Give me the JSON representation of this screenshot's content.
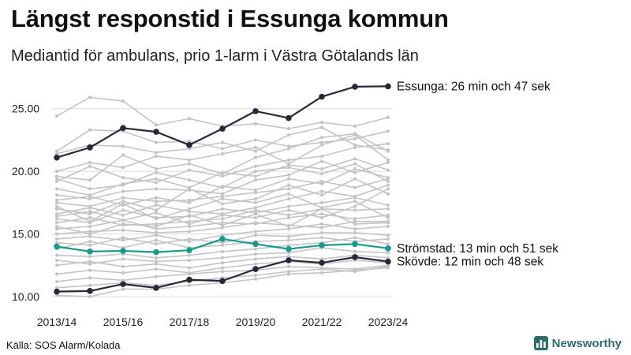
{
  "title": "Längst responstid i Essunga kommun",
  "subtitle": "Mediantid för ambulans, prio 1-larm i Västra Götalands län",
  "source": "Källa: SOS Alarm/Kolada",
  "brand": "Newsworthy",
  "colors": {
    "highlight_dark": "#2a2838",
    "highlight_teal": "#1a9a8a",
    "background_lines": "#c4c4c4",
    "grid": "#dcdcdc",
    "brand": "#2e6e6a"
  },
  "chart_data": {
    "type": "line",
    "x": [
      "2013/14",
      "2014/15",
      "2015/16",
      "2016/17",
      "2017/18",
      "2018/19",
      "2019/20",
      "2020/21",
      "2021/22",
      "2022/23",
      "2023/24"
    ],
    "x_tick_labels": [
      "2013/14",
      "2015/16",
      "2017/18",
      "2019/20",
      "2021/22",
      "2023/24"
    ],
    "y_tick_labels": [
      "10.00",
      "15.00",
      "20.00",
      "25.00"
    ],
    "ylim": [
      10,
      27.5
    ],
    "grid": "horizontal",
    "legend": "none",
    "series": [
      {
        "name": "Essunga: 26 min och 47 sek",
        "highlight": true,
        "color": "#2a2838",
        "values": [
          21.1,
          21.9,
          23.45,
          23.15,
          22.1,
          23.4,
          24.8,
          24.25,
          25.95,
          26.75,
          26.78
        ]
      },
      {
        "name": "Strömstad: 13 min och 51 sek",
        "highlight": true,
        "color": "#1a9a8a",
        "values": [
          14.0,
          13.6,
          13.65,
          13.55,
          13.7,
          14.6,
          14.2,
          13.8,
          14.1,
          14.2,
          13.85
        ]
      },
      {
        "name": "Skövde: 12 min och 48 sek",
        "highlight": true,
        "color": "#2a2838",
        "values": [
          10.4,
          10.45,
          11.0,
          10.7,
          11.35,
          11.25,
          12.2,
          12.9,
          12.7,
          13.15,
          12.8
        ]
      },
      {
        "values": [
          24.4,
          25.9,
          25.6,
          23.7,
          24.2,
          23.6,
          23.8,
          23.4,
          23.9,
          23.6,
          24.3
        ]
      },
      {
        "values": [
          21.6,
          23.3,
          23.2,
          22.3,
          22.4,
          21.8,
          22.5,
          22.0,
          22.3,
          22.6,
          23.2
        ]
      },
      {
        "values": [
          21.4,
          22.1,
          22.0,
          21.5,
          21.8,
          22.3,
          21.6,
          22.9,
          23.5,
          22.1,
          21.7
        ]
      },
      {
        "values": [
          19.6,
          19.3,
          21.3,
          20.2,
          20.6,
          19.8,
          21.1,
          21.8,
          22.7,
          23.0,
          21.6
        ]
      },
      {
        "values": [
          19.2,
          20.4,
          19.5,
          19.1,
          20.1,
          19.6,
          20.4,
          20.9,
          21.2,
          21.9,
          22.2
        ]
      },
      {
        "values": [
          18.6,
          18.1,
          19.0,
          19.4,
          18.7,
          19.9,
          19.6,
          20.5,
          20.2,
          21.0,
          20.1
        ]
      },
      {
        "values": [
          18.1,
          17.8,
          18.4,
          18.6,
          18.5,
          18.2,
          19.3,
          19.7,
          20.8,
          19.9,
          20.7
        ]
      },
      {
        "values": [
          17.7,
          18.0,
          17.3,
          17.9,
          17.5,
          18.8,
          18.5,
          19.4,
          19.0,
          20.2,
          19.5
        ]
      },
      {
        "values": [
          17.5,
          17.2,
          17.9,
          17.6,
          17.7,
          18.0,
          18.3,
          18.6,
          19.2,
          18.7,
          19.4
        ]
      },
      {
        "values": [
          17.0,
          16.6,
          17.6,
          16.9,
          18.6,
          17.4,
          17.8,
          18.9,
          18.1,
          19.4,
          18.2
        ]
      },
      {
        "values": [
          16.6,
          17.1,
          16.5,
          17.3,
          16.8,
          16.6,
          17.1,
          17.8,
          18.4,
          18.0,
          18.9
        ]
      },
      {
        "values": [
          16.2,
          15.9,
          16.9,
          16.3,
          16.4,
          17.0,
          16.7,
          17.2,
          17.5,
          17.9,
          17.3
        ]
      },
      {
        "values": [
          15.9,
          16.3,
          15.7,
          15.8,
          16.0,
          16.2,
          16.9,
          16.5,
          17.0,
          16.9,
          17.0
        ]
      },
      {
        "values": [
          15.4,
          15.6,
          16.1,
          15.4,
          15.6,
          15.9,
          15.8,
          16.3,
          16.6,
          16.2,
          16.5
        ]
      },
      {
        "values": [
          15.0,
          15.2,
          15.3,
          15.1,
          15.2,
          15.5,
          15.9,
          15.7,
          15.5,
          16.0,
          16.0
        ]
      },
      {
        "values": [
          14.6,
          14.8,
          14.5,
          14.9,
          14.4,
          14.9,
          15.2,
          15.4,
          15.8,
          15.4,
          15.6
        ]
      },
      {
        "values": [
          14.3,
          14.1,
          14.7,
          14.2,
          14.6,
          14.3,
          14.9,
          14.8,
          15.1,
          15.1,
          14.9
        ]
      },
      {
        "values": [
          13.8,
          14.4,
          13.9,
          14.5,
          13.9,
          14.1,
          14.4,
          14.5,
          14.7,
          14.4,
          14.6
        ]
      },
      {
        "values": [
          13.3,
          13.2,
          13.4,
          13.1,
          13.3,
          13.6,
          13.8,
          14.1,
          14.3,
          14.7,
          14.2
        ]
      },
      {
        "values": [
          12.9,
          12.6,
          13.0,
          12.8,
          12.9,
          13.1,
          13.4,
          13.5,
          13.9,
          13.6,
          13.5
        ]
      },
      {
        "values": [
          12.5,
          12.8,
          12.4,
          12.6,
          12.3,
          12.7,
          13.0,
          13.2,
          13.0,
          13.3,
          13.1
        ]
      },
      {
        "values": [
          11.8,
          12.1,
          11.9,
          12.2,
          11.9,
          12.3,
          12.6,
          12.8,
          12.6,
          12.9,
          12.7
        ]
      },
      {
        "values": [
          11.2,
          11.5,
          11.3,
          11.6,
          11.8,
          12.0,
          12.1,
          12.4,
          12.3,
          12.2,
          12.5
        ]
      },
      {
        "values": [
          10.7,
          10.9,
          11.1,
          10.9,
          11.2,
          11.5,
          11.7,
          12.0,
          12.2,
          12.0,
          12.4
        ]
      },
      {
        "values": [
          10.1,
          10.0,
          10.6,
          10.6,
          10.9,
          11.1,
          11.4,
          11.8,
          11.9,
          12.1,
          12.3
        ]
      },
      {
        "values": [
          20.0,
          20.7,
          20.3,
          21.2,
          20.9,
          21.4,
          21.9,
          20.6,
          22.1,
          22.9,
          20.9
        ]
      },
      {
        "values": [
          17.2,
          16.0,
          17.4,
          16.2,
          17.0,
          17.8,
          17.5,
          18.2,
          17.1,
          17.6,
          16.3
        ]
      },
      {
        "values": [
          19.4,
          18.6,
          18.9,
          19.9,
          19.3,
          18.7,
          20.0,
          20.3,
          19.8,
          20.6,
          19.2
        ]
      },
      {
        "values": [
          16.4,
          16.8,
          16.1,
          16.7,
          15.8,
          16.5,
          16.3,
          16.9,
          16.3,
          17.2,
          18.6
        ]
      },
      {
        "values": [
          15.6,
          15.0,
          15.8,
          15.6,
          16.5,
          15.7,
          16.6,
          15.6,
          17.0,
          15.8,
          15.9
        ]
      }
    ]
  }
}
